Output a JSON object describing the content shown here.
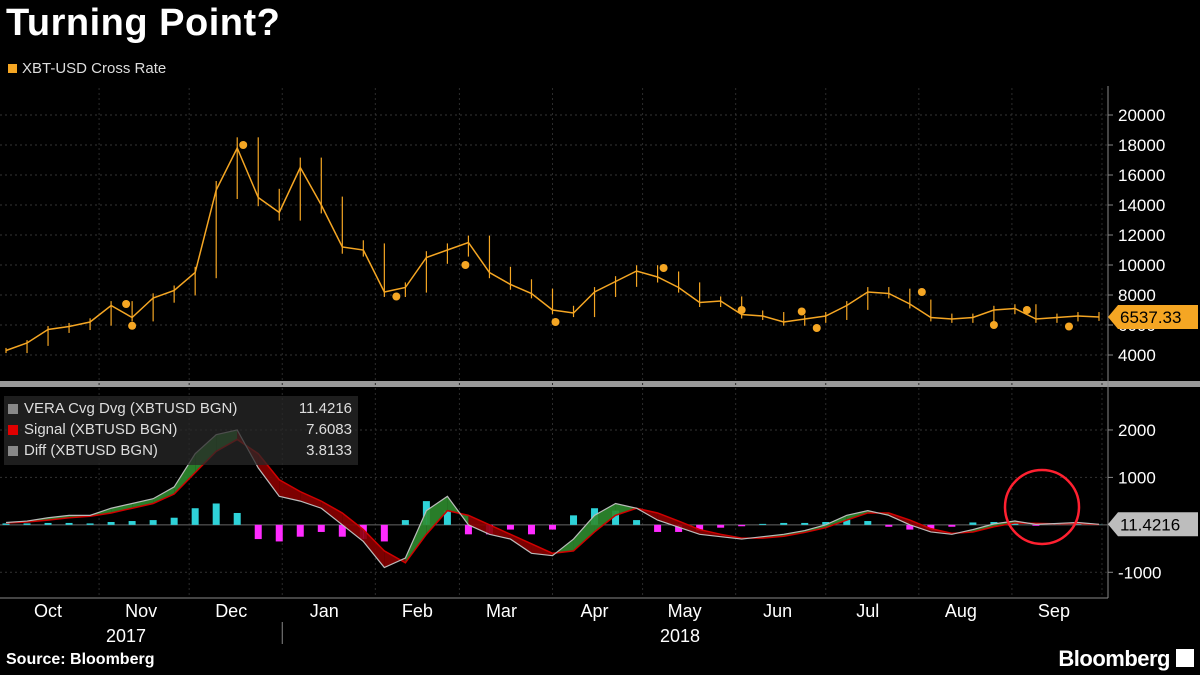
{
  "title": "Turning Point?",
  "source": "Source: Bloomberg",
  "brand": "Bloomberg",
  "colors": {
    "price": "#f5a623",
    "hist_pos": "#2ed2d8",
    "hist_neg": "#ff2bff",
    "vera": "#ffffff",
    "signal": "#d00000",
    "fill_up": "#2e8b2e",
    "fill_down": "#8a0000",
    "circle": "#ff2030"
  },
  "chart_data": [
    {
      "type": "line",
      "series_name": "XBT-USD Cross Rate",
      "last_value_label": "6537.33",
      "ylim": [
        3000,
        21000
      ],
      "yticks": [
        4000,
        6000,
        8000,
        10000,
        12000,
        14000,
        16000,
        18000,
        20000
      ],
      "x": [
        "2017-10-01",
        "2017-10-08",
        "2017-10-15",
        "2017-10-22",
        "2017-10-29",
        "2017-11-05",
        "2017-11-12",
        "2017-11-19",
        "2017-11-26",
        "2017-12-03",
        "2017-12-10",
        "2017-12-17",
        "2017-12-24",
        "2017-12-31",
        "2018-01-07",
        "2018-01-14",
        "2018-01-21",
        "2018-01-28",
        "2018-02-04",
        "2018-02-11",
        "2018-02-18",
        "2018-02-25",
        "2018-03-04",
        "2018-03-11",
        "2018-03-18",
        "2018-03-25",
        "2018-04-01",
        "2018-04-08",
        "2018-04-15",
        "2018-04-22",
        "2018-04-29",
        "2018-05-06",
        "2018-05-13",
        "2018-05-20",
        "2018-05-27",
        "2018-06-03",
        "2018-06-10",
        "2018-06-17",
        "2018-06-24",
        "2018-07-01",
        "2018-07-08",
        "2018-07-15",
        "2018-07-22",
        "2018-07-29",
        "2018-08-05",
        "2018-08-12",
        "2018-08-19",
        "2018-08-26",
        "2018-09-02",
        "2018-09-09",
        "2018-09-16",
        "2018-09-23",
        "2018-09-30"
      ],
      "values": [
        4300,
        4800,
        5700,
        5900,
        6200,
        7300,
        6500,
        7800,
        8300,
        9500,
        15000,
        17800,
        14500,
        13500,
        16500,
        14000,
        11200,
        11000,
        8200,
        8500,
        10500,
        11000,
        11500,
        9500,
        8700,
        8100,
        7000,
        6800,
        8200,
        8900,
        9600,
        9200,
        8500,
        7500,
        7600,
        6700,
        6600,
        6200,
        6400,
        6600,
        7300,
        8200,
        8100,
        7400,
        6500,
        6400,
        6500,
        7000,
        7100,
        6400,
        6500,
        6600,
        6537.33
      ],
      "markers": [
        {
          "x": "2017-11-10",
          "y": 7400
        },
        {
          "x": "2017-11-12",
          "y": 5950
        },
        {
          "x": "2017-12-19",
          "y": 18000
        },
        {
          "x": "2018-02-08",
          "y": 7900
        },
        {
          "x": "2018-03-03",
          "y": 10000
        },
        {
          "x": "2018-04-02",
          "y": 6200
        },
        {
          "x": "2018-05-08",
          "y": 9800
        },
        {
          "x": "2018-06-03",
          "y": 7000
        },
        {
          "x": "2018-06-23",
          "y": 6900
        },
        {
          "x": "2018-06-28",
          "y": 5800
        },
        {
          "x": "2018-08-02",
          "y": 8200
        },
        {
          "x": "2018-08-26",
          "y": 6000
        },
        {
          "x": "2018-09-06",
          "y": 7000
        },
        {
          "x": "2018-09-20",
          "y": 5900
        }
      ]
    },
    {
      "type": "line",
      "ylim": [
        -1500,
        2800
      ],
      "yticks": [
        -1000,
        1000,
        2000
      ],
      "last_value_label": "11.4216",
      "series": [
        {
          "name": "VERA Cvg Dvg (XBTUSD BGN)",
          "value_label": "11.4216",
          "values": [
            50,
            80,
            150,
            200,
            200,
            350,
            450,
            550,
            800,
            1500,
            1900,
            2000,
            1200,
            600,
            500,
            350,
            0,
            -350,
            -900,
            -700,
            300,
            600,
            0,
            -200,
            -300,
            -600,
            -650,
            -300,
            200,
            450,
            350,
            100,
            -50,
            -200,
            -250,
            -300,
            -250,
            -200,
            -120,
            0,
            200,
            300,
            200,
            0,
            -150,
            -200,
            -100,
            20,
            80,
            10,
            30,
            50,
            11.4216
          ]
        },
        {
          "name": "Signal (XBTUSD BGN)",
          "value_label": "7.6083",
          "values": [
            40,
            60,
            100,
            150,
            180,
            250,
            350,
            450,
            650,
            1100,
            1550,
            1800,
            1500,
            950,
            700,
            500,
            250,
            -100,
            -550,
            -800,
            -200,
            300,
            200,
            0,
            -200,
            -400,
            -600,
            -550,
            -150,
            200,
            350,
            250,
            80,
            -100,
            -200,
            -280,
            -280,
            -240,
            -160,
            -60,
            100,
            250,
            250,
            100,
            -80,
            -180,
            -150,
            -40,
            40,
            30,
            20,
            30,
            7.6083
          ]
        },
        {
          "name": "Diff (XBTUSD BGN)",
          "value_label": "3.8133",
          "values": [
            30,
            30,
            40,
            40,
            30,
            60,
            80,
            100,
            150,
            350,
            450,
            250,
            -300,
            -350,
            -250,
            -150,
            -250,
            -300,
            -350,
            100,
            500,
            300,
            -200,
            -200,
            -100,
            -200,
            -100,
            200,
            350,
            300,
            100,
            -150,
            -150,
            -120,
            -60,
            -30,
            20,
            40,
            40,
            60,
            110,
            80,
            -40,
            -100,
            -80,
            -40,
            50,
            60,
            40,
            -20,
            10,
            20,
            3.8133
          ]
        }
      ]
    }
  ],
  "x_axis": {
    "months": [
      "Oct",
      "Nov",
      "Dec",
      "Jan",
      "Feb",
      "Mar",
      "Apr",
      "May",
      "Jun",
      "Jul",
      "Aug",
      "Sep"
    ],
    "years": [
      "2017",
      "2018"
    ]
  }
}
